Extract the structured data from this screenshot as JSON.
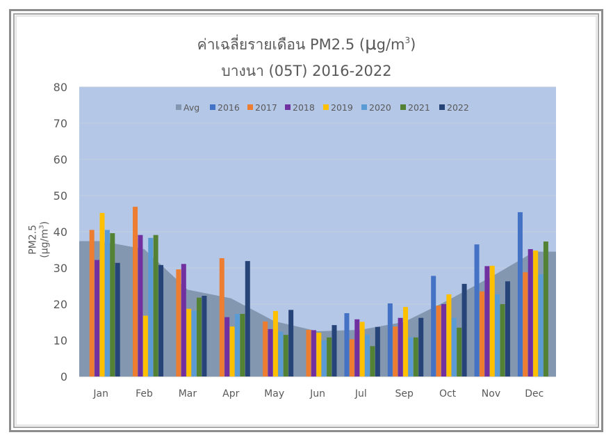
{
  "chart": {
    "title_line1_prefix": "ค่าเฉลี่ยรายเดือน PM2.5 (",
    "title_line1_mu": "μ",
    "title_line1_unit": "g/m",
    "title_line1_sup": "3",
    "title_line1_suffix": ")",
    "title_line2": "บางนา (05T) 2016-2022",
    "ylabel_text": "PM2.5 (μg/m",
    "ylabel_sup": "3",
    "ylabel_suffix": ")"
  },
  "chart_data": {
    "type": "bar",
    "title": "ค่าเฉลี่ยรายเดือน PM2.5 (μg/m³) บางนา (05T) 2016-2022",
    "xlabel": "",
    "ylabel": "PM2.5 (μg/m³)",
    "ylim": [
      0,
      80
    ],
    "yticks": [
      0,
      10,
      20,
      30,
      40,
      50,
      60,
      70,
      80
    ],
    "grid": true,
    "legend_position": "top-inside",
    "categories": [
      "Jan",
      "Feb",
      "Mar",
      "Apr",
      "May",
      "Jun",
      "Jul",
      "Sep",
      "Oct",
      "Nov",
      "Dec"
    ],
    "area_series": {
      "name": "Avg",
      "type": "area",
      "color": "#8497b0",
      "values": [
        37.4,
        35.2,
        24.0,
        21.6,
        15.3,
        12.5,
        12.9,
        15.1,
        21.0,
        27.5,
        34.5
      ]
    },
    "series": [
      {
        "name": "2016",
        "color": "#4472c4",
        "values": [
          null,
          null,
          null,
          null,
          null,
          null,
          17.5,
          20.2,
          27.8,
          36.5,
          45.4
        ]
      },
      {
        "name": "2017",
        "color": "#ed7d31",
        "values": [
          40.5,
          46.9,
          29.6,
          32.7,
          15.2,
          12.9,
          10.3,
          13.8,
          19.6,
          23.5,
          28.8
        ]
      },
      {
        "name": "2018",
        "color": "#7030a0",
        "values": [
          32.2,
          39.1,
          31.1,
          16.4,
          13.1,
          12.8,
          15.8,
          16.2,
          20.0,
          30.5,
          35.2
        ]
      },
      {
        "name": "2019",
        "color": "#ffc000",
        "values": [
          45.2,
          16.8,
          18.7,
          13.8,
          18.1,
          12.1,
          15.1,
          19.2,
          22.7,
          30.6,
          34.8
        ]
      },
      {
        "name": "2020",
        "color": "#5b9bd5",
        "values": [
          40.5,
          38.3,
          18.2,
          17.3,
          12.4,
          10.0,
          11.6,
          10.8,
          16.2,
          22.7,
          28.3
        ]
      },
      {
        "name": "2021",
        "color": "#548235",
        "values": [
          39.6,
          39.1,
          21.8,
          17.3,
          11.5,
          10.8,
          8.4,
          10.8,
          13.5,
          20.0,
          37.3
        ]
      },
      {
        "name": "2022",
        "color": "#264478",
        "values": [
          31.4,
          30.8,
          22.3,
          31.9,
          18.4,
          14.2,
          13.7,
          16.2,
          25.6,
          26.3,
          null
        ]
      }
    ],
    "legend": [
      "Avg",
      "2016",
      "2017",
      "2018",
      "2019",
      "2020",
      "2021",
      "2022"
    ],
    "plot_background": "#b4c7e7"
  }
}
